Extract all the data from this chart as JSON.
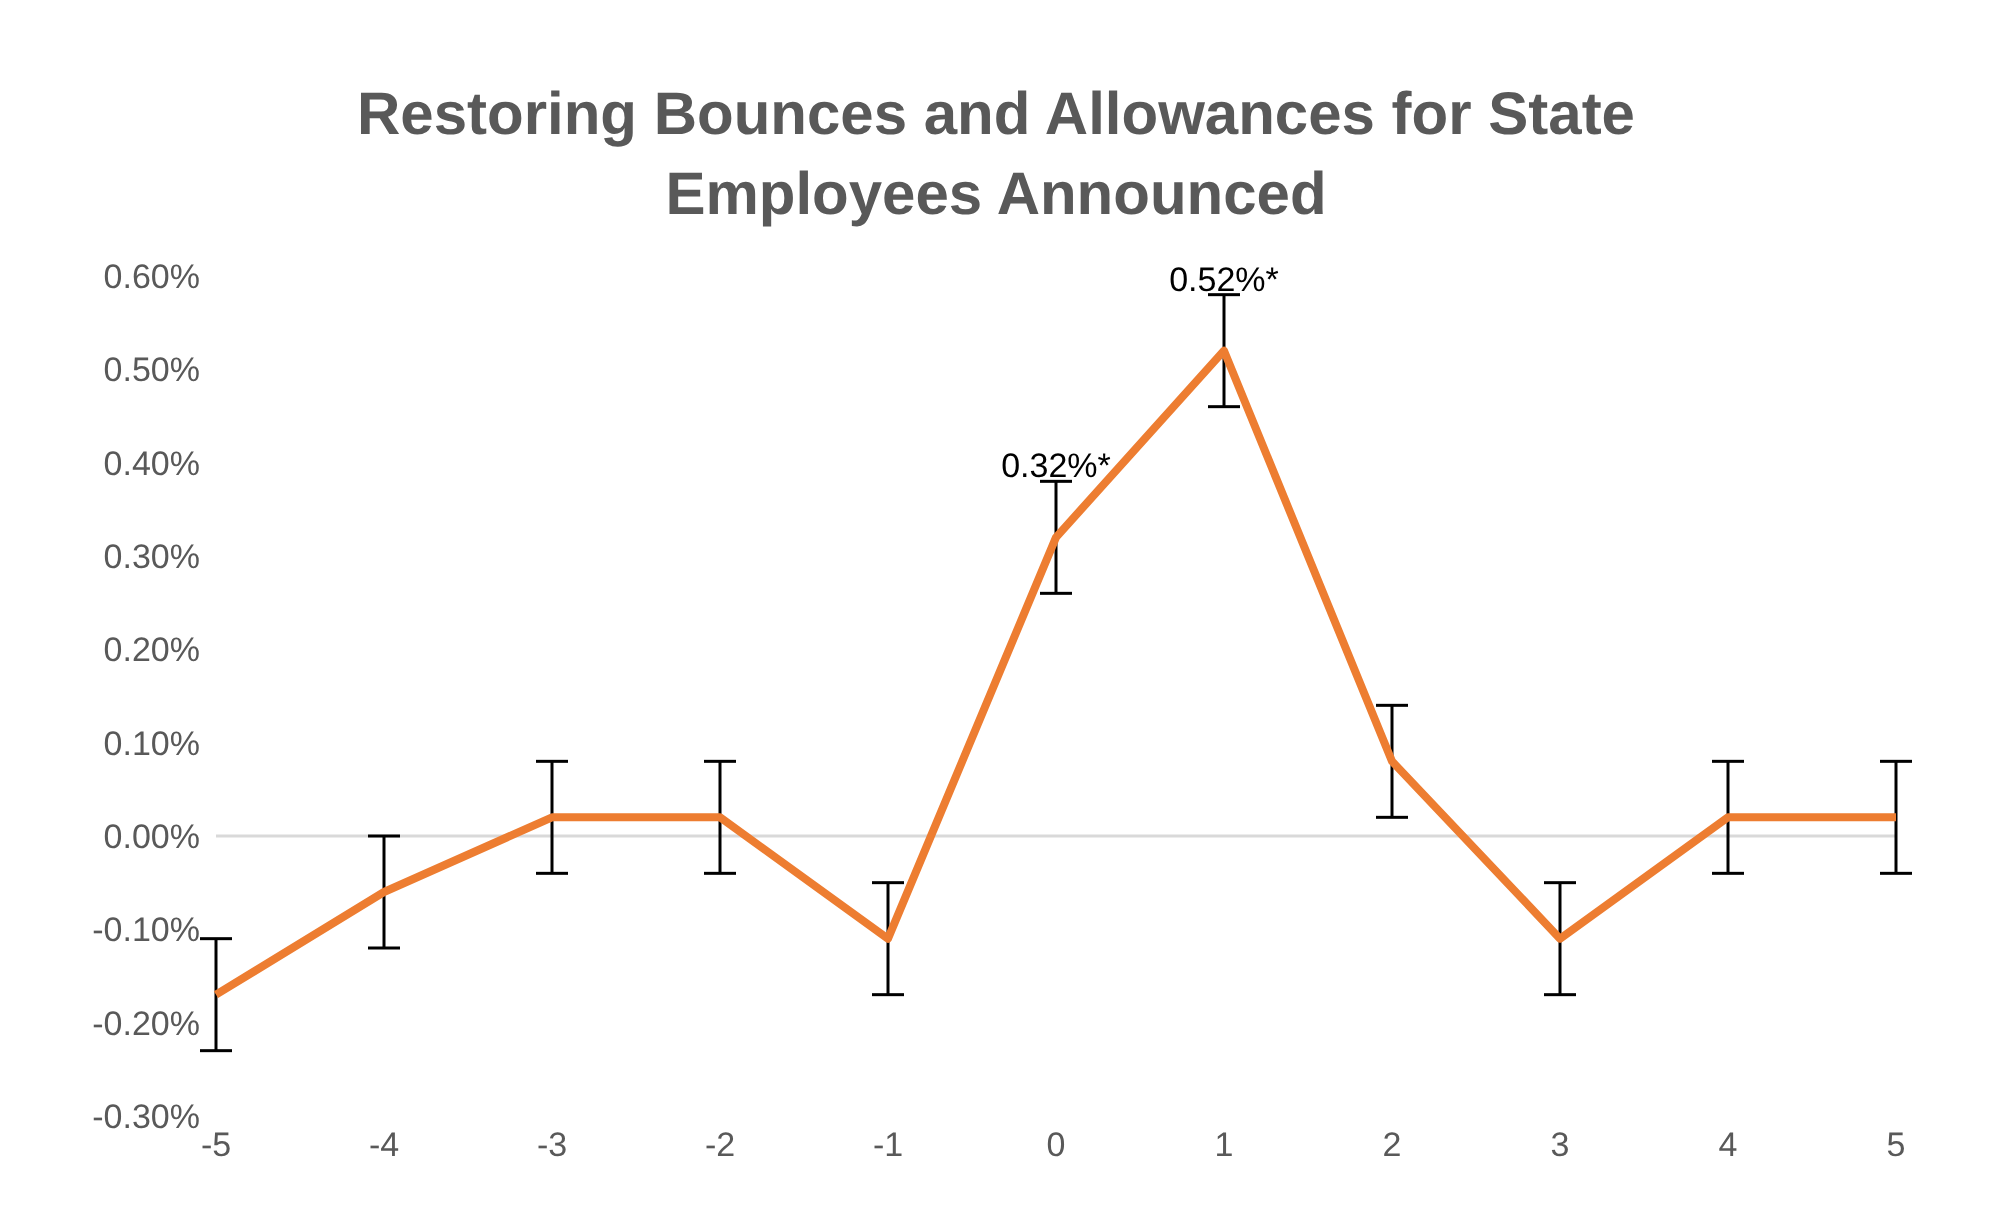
{
  "chart_data": {
    "type": "line",
    "title": "Restoring Bounces and Allowances for State Employees Announced",
    "categories": [
      "-5",
      "-4",
      "-3",
      "-2",
      "-1",
      "0",
      "1",
      "2",
      "3",
      "4",
      "5"
    ],
    "series": [
      {
        "color": "#ed7d31",
        "values": [
          -0.17,
          -0.06,
          0.02,
          0.02,
          -0.11,
          0.32,
          0.52,
          0.08,
          -0.11,
          0.02,
          0.02
        ],
        "errors": [
          0.06,
          0.06,
          0.06,
          0.06,
          0.06,
          0.06,
          0.06,
          0.06,
          0.06,
          0.06,
          0.06
        ],
        "value_labels": [
          null,
          null,
          null,
          null,
          null,
          "0.32%*",
          "0.52%*",
          null,
          null,
          null,
          null
        ]
      }
    ],
    "ylim": [
      -0.3,
      0.6
    ],
    "yticks": [
      {
        "value": -0.3,
        "label": "-0.30%"
      },
      {
        "value": -0.2,
        "label": "-0.20%"
      },
      {
        "value": -0.1,
        "label": "-0.10%"
      },
      {
        "value": 0,
        "label": "0.00%"
      },
      {
        "value": 0.1,
        "label": "0.10%"
      },
      {
        "value": 0.2,
        "label": "0.20%"
      },
      {
        "value": 0.3,
        "label": "0.30%"
      },
      {
        "value": 0.4,
        "label": "0.40%"
      },
      {
        "value": 0.5,
        "label": "0.50%"
      },
      {
        "value": 0.6,
        "label": "0.60%"
      }
    ],
    "ref_lines": [
      {
        "axis": "y",
        "value": 0,
        "color": "#d9d9d9"
      }
    ],
    "grid": false,
    "legend": false,
    "marker": "none",
    "line_style": "solid"
  }
}
